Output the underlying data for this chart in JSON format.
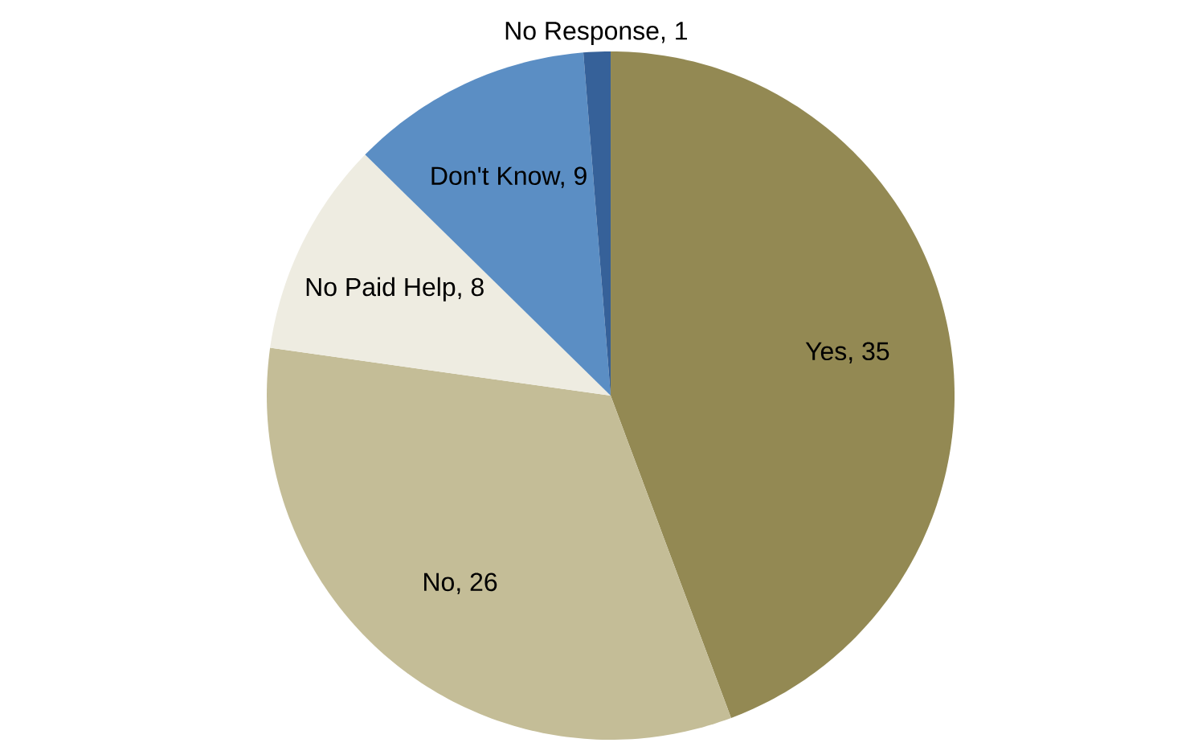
{
  "chart_data": {
    "type": "pie",
    "categories": [
      null,
      null,
      null,
      null,
      null
    ],
    "values": [
      35,
      26,
      8,
      9,
      1
    ],
    "value_labels": [
      "Yes, 35",
      "No, 26",
      "No Paid Help, 8",
      "Don't Know, 9",
      "No Response, 1"
    ],
    "colors": [
      "#938953",
      "#c4bd97",
      "#eeece1",
      "#5b8ec4",
      "#366199"
    ]
  }
}
